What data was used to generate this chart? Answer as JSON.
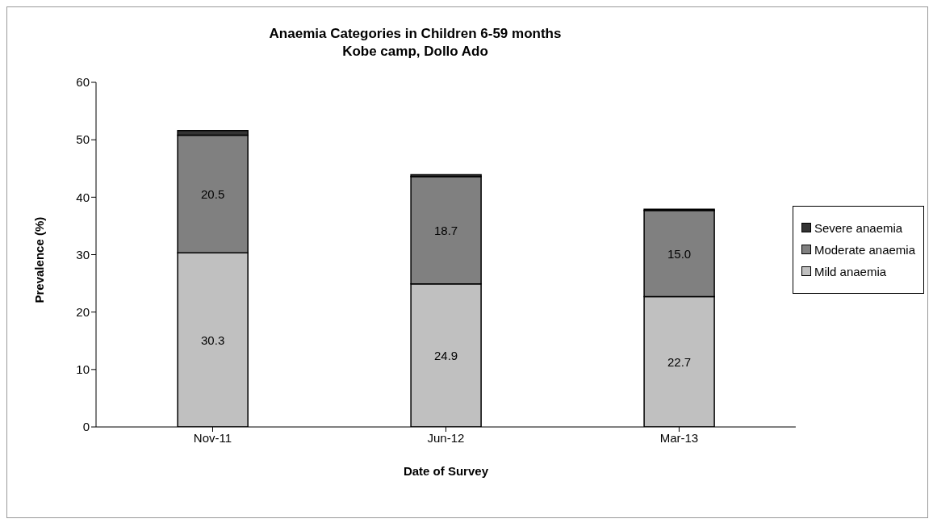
{
  "chart_data": {
    "type": "bar",
    "title": "Anaemia Categories in Children 6-59 months",
    "subtitle": "Kobe camp, Dollo Ado",
    "xlabel": "Date of Survey",
    "ylabel": "Prevalence (%)",
    "categories": [
      "Nov-11",
      "Jun-12",
      "Mar-13"
    ],
    "stacked": true,
    "series": [
      {
        "name": "Mild anaemia",
        "color": "#c0c0c0",
        "values": [
          30.3,
          24.9,
          22.7
        ],
        "value_labels": [
          "30.3",
          "24.9",
          "22.7"
        ]
      },
      {
        "name": "Moderate anaemia",
        "color": "#808080",
        "values": [
          20.5,
          18.7,
          15.0
        ],
        "value_labels": [
          "20.5",
          "18.7",
          "15.0"
        ]
      },
      {
        "name": "Severe anaemia",
        "color": "#333333",
        "values": [
          0.8,
          0.3,
          0.2
        ]
      }
    ],
    "ylim": [
      0,
      60
    ],
    "yticks": [
      0,
      10,
      20,
      30,
      40,
      50,
      60
    ],
    "grid": false,
    "legend": "right"
  }
}
